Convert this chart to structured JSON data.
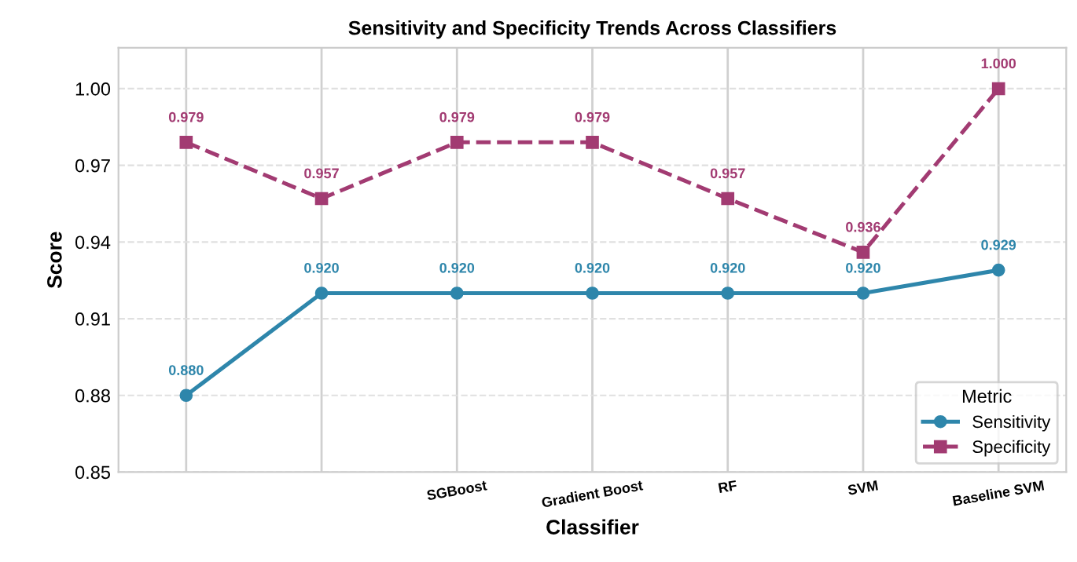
{
  "chart_data": {
    "type": "line",
    "title": "Sensitivity and Specificity Trends Across Classifiers",
    "xlabel": "Classifier",
    "ylabel": "Score",
    "legend_title": "Metric",
    "categories": [
      null,
      null,
      "SGBoost",
      "Gradient Boost",
      "RF",
      "SVM",
      "Baseline SVM"
    ],
    "series": [
      {
        "name": "Sensitivity",
        "color": "#2e86ab",
        "values": [
          0.88,
          0.92,
          0.92,
          0.92,
          0.92,
          0.92,
          0.929
        ],
        "value_labels": [
          "0.880",
          "0.920",
          "0.920",
          "0.920",
          "0.920",
          "0.920",
          "0.929"
        ],
        "marker": "circle",
        "line_style": "solid"
      },
      {
        "name": "Specificity",
        "color": "#a23b72",
        "values": [
          0.979,
          0.957,
          0.979,
          0.979,
          0.957,
          0.936,
          1.0
        ],
        "value_labels": [
          "0.979",
          "0.957",
          "0.979",
          "0.979",
          "0.957",
          "0.936",
          "1.000"
        ],
        "marker": "square",
        "line_style": "dashed"
      }
    ],
    "ylim": [
      0.85,
      1.016
    ],
    "yticks": [
      {
        "value": 0.85,
        "label": "0.85"
      },
      0.88,
      0.91,
      0.94,
      0.97,
      {
        "value": 1.0,
        "label": "1.00"
      }
    ],
    "grid": true,
    "legend": "bottom right"
  }
}
